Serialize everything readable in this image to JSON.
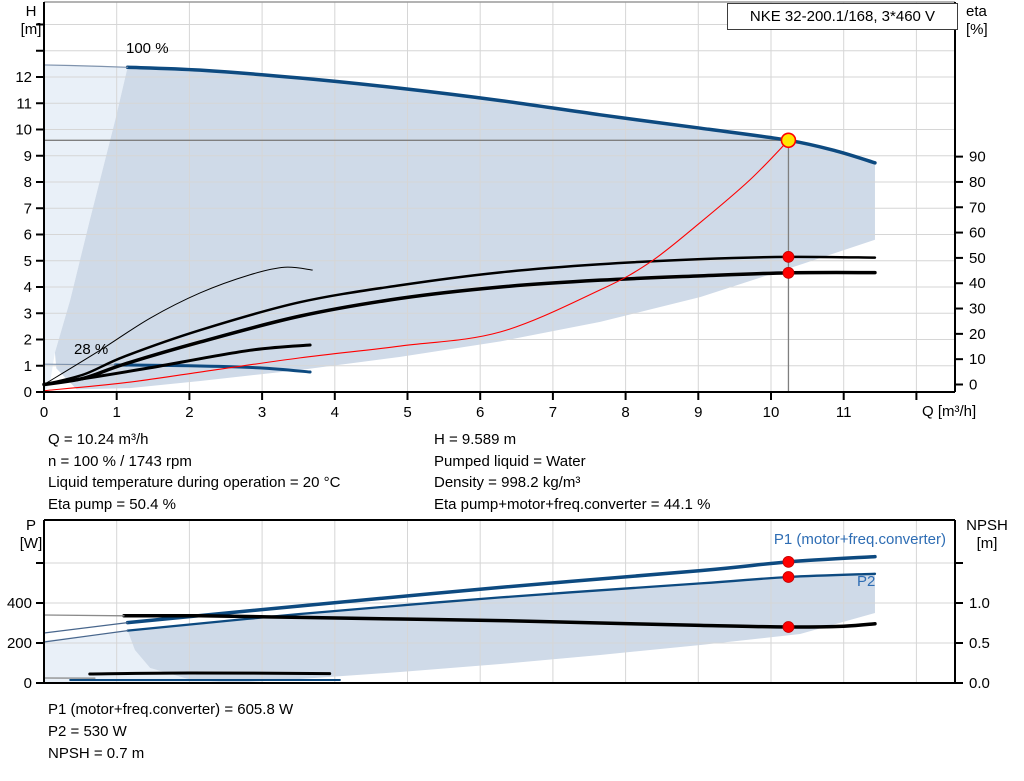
{
  "title": "NKE 32-200.1/168, 3*460 V",
  "axis_labels": {
    "h": "H",
    "h_unit": "[m]",
    "eta": "eta",
    "eta_unit": "[%]",
    "p": "P",
    "p_unit": "[W]",
    "npsh": "NPSH",
    "npsh_unit": "[m]"
  },
  "info_block": {
    "left": [
      "Q = 10.24 m³/h",
      "n = 100 % / 1743 rpm",
      "Liquid temperature during operation = 20 °C",
      "Eta pump = 50.4 %"
    ],
    "right": [
      "H = 9.589 m",
      "Pumped liquid = Water",
      "Density = 998.2 kg/m³",
      "Eta pump+motor+freq.converter = 44.1 %"
    ]
  },
  "result_block": [
    "P1 (motor+freq.converter) = 605.8 W",
    "P2 = 530 W",
    "NPSH = 0.7 m"
  ],
  "colors": {
    "curve_blue": "#0d4a80",
    "ext_blue": "#48668c",
    "ext_gray": "#7f93ad",
    "fill_dark": "#cfdae8",
    "fill_light": "#e9f0f8",
    "grid": "#d6d6d6",
    "axis": "#000000",
    "top_border": "#9a9a9a",
    "crosshair": "#7f7f7f",
    "red": "#ff0000",
    "duty_yellow": "#ffe600",
    "label_blue": "#2e6db4"
  },
  "chart_data": [
    {
      "type": "line",
      "title": "QH and efficiency curves",
      "xlabel": "Q [m³/h]",
      "ylabel_left": "H [m]",
      "ylabel_right": "eta [%]",
      "xlim": [
        0,
        12.53
      ],
      "ylim_left": [
        0,
        14.85
      ],
      "ylim_right": [
        0,
        95
      ],
      "grid": true,
      "x_ticks": {
        "values": [
          0,
          1,
          2,
          3,
          4,
          5,
          6,
          7,
          8,
          9,
          10,
          11
        ],
        "minor": [
          12
        ]
      },
      "y_left_ticks": {
        "values": [
          0,
          1,
          2,
          3,
          4,
          5,
          6,
          7,
          8,
          9,
          10,
          11,
          12
        ],
        "minor": [
          13,
          14
        ]
      },
      "y_right_ticks": {
        "values": [
          0,
          10,
          20,
          30,
          40,
          50,
          60,
          70,
          80,
          90
        ],
        "minor": []
      },
      "annotations": [
        {
          "name": "speed-100-label",
          "text": "100 %"
        },
        {
          "name": "speed-28-label",
          "text": "28 %"
        }
      ],
      "crosshair": {
        "q": 10.24,
        "h": 9.589
      },
      "series": [
        {
          "name": "speed-100-curve",
          "axis": "H",
          "color": "#0d4a80",
          "width": 3.5,
          "points": [
            [
              1.15,
              12.37
            ],
            [
              2.15,
              12.26
            ],
            [
              3.52,
              11.96
            ],
            [
              4.9,
              11.57
            ],
            [
              6.28,
              11.1
            ],
            [
              7.65,
              10.56
            ],
            [
              9.03,
              10.05
            ],
            [
              10.24,
              9.589
            ],
            [
              10.9,
              9.18
            ],
            [
              11.43,
              8.73
            ]
          ]
        },
        {
          "name": "speed-100-ext",
          "axis": "H",
          "color": "#7f93ad",
          "width": 1.2,
          "points": [
            [
              0,
              12.46
            ],
            [
              0.6,
              12.42
            ],
            [
              1.15,
              12.37
            ]
          ]
        },
        {
          "name": "speed-28-curve",
          "axis": "H",
          "color": "#0d4a80",
          "width": 3,
          "points": [
            [
              0.98,
              1.03
            ],
            [
              2.0,
              1.0
            ],
            [
              2.97,
              0.92
            ],
            [
              3.66,
              0.76
            ]
          ]
        },
        {
          "name": "speed-28-ext",
          "axis": "H",
          "color": "#7f93ad",
          "width": 1.2,
          "points": [
            [
              0,
              1.06
            ],
            [
              0.98,
              1.03
            ]
          ]
        },
        {
          "name": "eta-pump-curve",
          "axis": "eta",
          "color": "#000000",
          "width": 2.5,
          "points": [
            [
              0,
              0
            ],
            [
              0.55,
              4
            ],
            [
              1.1,
              11
            ],
            [
              2.15,
              21.5
            ],
            [
              3.52,
              32.5
            ],
            [
              4.9,
              39.2
            ],
            [
              6.28,
              44.3
            ],
            [
              7.65,
              47.5
            ],
            [
              9.03,
              49.5
            ],
            [
              10.24,
              50.4
            ],
            [
              11.43,
              50.1
            ]
          ]
        },
        {
          "name": "eta-pump-motor-freq-curve",
          "axis": "eta",
          "color": "#000000",
          "width": 3.5,
          "points": [
            [
              0,
              0
            ],
            [
              0.55,
              2.5
            ],
            [
              1.1,
              8
            ],
            [
              2.15,
              16.8
            ],
            [
              3.52,
              27
            ],
            [
              4.9,
              34
            ],
            [
              6.28,
              38.5
            ],
            [
              7.65,
              41.2
            ],
            [
              9.03,
              42.9
            ],
            [
              10.24,
              44.1
            ],
            [
              11.43,
              44.2
            ]
          ]
        },
        {
          "name": "eta-pump-reduced-speed-curve",
          "axis": "eta",
          "color": "#000000",
          "width": 1,
          "points": [
            [
              0,
              0
            ],
            [
              0.77,
              13.5
            ],
            [
              1.46,
              26.2
            ],
            [
              2.15,
              36.2
            ],
            [
              2.83,
              43.3
            ],
            [
              3.31,
              46.3
            ],
            [
              3.69,
              45.2
            ]
          ]
        },
        {
          "name": "eta-total-reduced-speed-curve",
          "axis": "eta",
          "color": "#000000",
          "width": 3,
          "points": [
            [
              0,
              0
            ],
            [
              0.7,
              3
            ],
            [
              1.46,
              6.6
            ],
            [
              2.83,
              13.5
            ],
            [
              3.66,
              15.6
            ]
          ]
        },
        {
          "name": "duty-parabola",
          "axis": "H",
          "color": "#ff0000",
          "width": 1.1,
          "points": [
            [
              0,
              0.05
            ],
            [
              1.1,
              0.35
            ],
            [
              2.15,
              0.76
            ],
            [
              3.52,
              1.3
            ],
            [
              4.9,
              1.75
            ],
            [
              6.28,
              2.29
            ],
            [
              7.65,
              3.89
            ],
            [
              8.34,
              4.95
            ],
            [
              9.02,
              6.44
            ],
            [
              9.71,
              8.08
            ],
            [
              10.24,
              9.589
            ]
          ]
        }
      ],
      "fills": [
        {
          "name": "light-region",
          "axis": "H",
          "color": "#e9f0f8",
          "points": [
            [
              0,
              12.46
            ],
            [
              1.15,
              12.37
            ],
            [
              0.98,
              10.36
            ],
            [
              0.63,
              6.55
            ],
            [
              0.36,
              3.5
            ],
            [
              0.15,
              1.5
            ],
            [
              0.08,
              0.3
            ],
            [
              0,
              0
            ]
          ]
        },
        {
          "name": "operating-envelope",
          "axis": "H",
          "color": "#cfdae8",
          "points": [
            [
              1.15,
              12.37
            ],
            [
              2.15,
              12.26
            ],
            [
              3.52,
              11.96
            ],
            [
              4.9,
              11.57
            ],
            [
              6.28,
              11.1
            ],
            [
              7.65,
              10.56
            ],
            [
              9.03,
              10.05
            ],
            [
              10.24,
              9.589
            ],
            [
              10.9,
              9.18
            ],
            [
              11.43,
              8.73
            ],
            [
              11.43,
              5.8
            ],
            [
              10.4,
              4.85
            ],
            [
              9.03,
              3.62
            ],
            [
              7.65,
              2.67
            ],
            [
              6.28,
              1.93
            ],
            [
              4.9,
              1.34
            ],
            [
              3.52,
              0.84
            ],
            [
              2.15,
              0.42
            ],
            [
              1.18,
              0.15
            ],
            [
              0.45,
              0.1
            ],
            [
              0.17,
              0.9
            ],
            [
              0.15,
              1.5
            ],
            [
              0.36,
              3.5
            ],
            [
              0.63,
              6.55
            ],
            [
              0.98,
              10.36
            ]
          ]
        }
      ],
      "markers": [
        {
          "name": "duty-point",
          "q": 10.24,
          "axis": "H",
          "v": 9.589,
          "style": "duty"
        },
        {
          "name": "eta-pump-point",
          "q": 10.24,
          "axis": "eta",
          "v": 50.4,
          "style": "dot"
        },
        {
          "name": "eta-total-point",
          "q": 10.24,
          "axis": "eta",
          "v": 44.1,
          "style": "dot"
        }
      ]
    },
    {
      "type": "line",
      "title": "Power and NPSH curves",
      "xlabel": "",
      "ylabel_left": "P [W]",
      "ylabel_right": "NPSH [m]",
      "xlim": [
        0,
        12.53
      ],
      "ylim_left": [
        0,
        815
      ],
      "ylim_right": [
        0,
        2.04
      ],
      "grid": true,
      "x_ticks": {
        "values": [],
        "minor": []
      },
      "y_left_ticks": {
        "values": [
          0,
          200,
          400
        ],
        "minor": [
          600
        ]
      },
      "y_right_ticks": {
        "values": [
          0,
          0.5,
          1
        ],
        "labels": [
          "0.0",
          "0.5",
          "1.0"
        ],
        "minor": [
          1.5
        ]
      },
      "annotations": [
        {
          "name": "p1-label",
          "text": "P1 (motor+freq.converter)"
        },
        {
          "name": "p2-label",
          "text": "P2"
        }
      ],
      "series": [
        {
          "name": "p1-curve",
          "axis": "P",
          "color": "#0d4a80",
          "width": 3.5,
          "points": [
            [
              1.15,
              302
            ],
            [
              3.52,
              385
            ],
            [
              6.28,
              478
            ],
            [
              9.03,
              562
            ],
            [
              10.24,
              605.8
            ],
            [
              11.43,
              632
            ]
          ]
        },
        {
          "name": "p1-ext",
          "axis": "P",
          "color": "#48668c",
          "width": 1.2,
          "points": [
            [
              0,
              250
            ],
            [
              1.15,
              302
            ]
          ]
        },
        {
          "name": "p2-curve",
          "axis": "P",
          "color": "#0d4a80",
          "width": 2.3,
          "points": [
            [
              1.15,
              262
            ],
            [
              3.52,
              345
            ],
            [
              6.28,
              428
            ],
            [
              9.03,
              498
            ],
            [
              10.24,
              530
            ],
            [
              11.43,
              546
            ]
          ]
        },
        {
          "name": "p2-ext",
          "axis": "P",
          "color": "#48668c",
          "width": 1.2,
          "points": [
            [
              0,
              205
            ],
            [
              1.15,
              262
            ]
          ]
        },
        {
          "name": "npsh-curve",
          "axis": "NPSH",
          "color": "#000000",
          "width": 3.5,
          "points": [
            [
              1.1,
              0.84
            ],
            [
              2.15,
              0.84
            ],
            [
              3.52,
              0.82
            ],
            [
              4.9,
              0.8
            ],
            [
              6.28,
              0.78
            ],
            [
              7.65,
              0.75
            ],
            [
              9.03,
              0.72
            ],
            [
              10.24,
              0.7
            ],
            [
              11.0,
              0.71
            ],
            [
              11.43,
              0.74
            ]
          ]
        },
        {
          "name": "npsh-ext",
          "axis": "NPSH",
          "color": "#8a8a8a",
          "width": 1.3,
          "points": [
            [
              0,
              0.85
            ],
            [
              1.1,
              0.84
            ]
          ]
        },
        {
          "name": "p-low-speed-black",
          "axis": "P",
          "color": "#000000",
          "width": 3,
          "points": [
            [
              0.63,
              45
            ],
            [
              2.0,
              50
            ],
            [
              3.93,
              47
            ]
          ]
        },
        {
          "name": "p-low-speed-blue",
          "axis": "P",
          "color": "#0d4a80",
          "width": 2,
          "points": [
            [
              0.36,
              15
            ],
            [
              4.07,
              15
            ]
          ]
        },
        {
          "name": "p-low-speed-ext",
          "axis": "P",
          "color": "#8a8a8a",
          "width": 1.3,
          "points": [
            [
              0,
              25
            ],
            [
              0.7,
              24
            ]
          ]
        }
      ],
      "fills": [
        {
          "name": "light-region",
          "axis": "P",
          "color": "#e9f0f8",
          "points": [
            [
              0,
              212
            ],
            [
              1.15,
              262
            ],
            [
              1.25,
              165
            ],
            [
              1.46,
              75
            ],
            [
              2.0,
              18
            ],
            [
              2.56,
              0
            ],
            [
              0,
              0
            ]
          ]
        },
        {
          "name": "operating-envelope",
          "axis": "P",
          "color": "#cfdae8",
          "points": [
            [
              1.15,
              262
            ],
            [
              3.52,
              345
            ],
            [
              6.28,
              428
            ],
            [
              9.03,
              498
            ],
            [
              10.24,
              530
            ],
            [
              11.43,
              546
            ],
            [
              11.43,
              350
            ],
            [
              10.4,
              245
            ],
            [
              9.03,
              190
            ],
            [
              7.65,
              140
            ],
            [
              6.28,
              95
            ],
            [
              4.9,
              55
            ],
            [
              3.52,
              20
            ],
            [
              2.56,
              0
            ],
            [
              2.0,
              18
            ],
            [
              1.46,
              75
            ],
            [
              1.25,
              165
            ]
          ]
        }
      ],
      "markers": [
        {
          "name": "p1-point",
          "q": 10.24,
          "axis": "P",
          "v": 605.8,
          "style": "dot"
        },
        {
          "name": "p2-point",
          "q": 10.24,
          "axis": "P",
          "v": 530,
          "style": "dot"
        },
        {
          "name": "npsh-point",
          "q": 10.24,
          "axis": "NPSH",
          "v": 0.7,
          "style": "dot"
        }
      ]
    }
  ]
}
